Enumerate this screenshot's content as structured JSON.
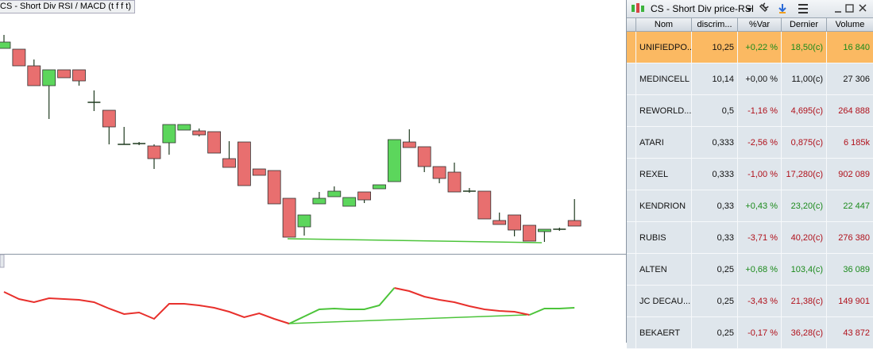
{
  "chart": {
    "title": "CS - Short Div RSI / MACD (t f f t)",
    "candles": [
      {
        "open": 259,
        "high": 276,
        "low": 259,
        "close": 267
      },
      {
        "open": 258,
        "high": 258,
        "low": 237,
        "close": 237
      },
      {
        "open": 237,
        "high": 245,
        "low": 212,
        "close": 212
      },
      {
        "open": 212,
        "high": 232,
        "low": 170,
        "close": 232
      },
      {
        "open": 232,
        "high": 232,
        "low": 222,
        "close": 222
      },
      {
        "open": 232,
        "high": 232,
        "low": 212,
        "close": 218
      },
      {
        "open": 191,
        "high": 206,
        "low": 180,
        "close": 191
      },
      {
        "open": 181,
        "high": 181,
        "low": 138,
        "close": 160
      },
      {
        "open": 138,
        "high": 160,
        "low": 138,
        "close": 138
      },
      {
        "open": 139,
        "high": 141,
        "low": 137,
        "close": 139
      },
      {
        "open": 136,
        "high": 138,
        "low": 107,
        "close": 120
      },
      {
        "open": 140,
        "high": 163,
        "low": 125,
        "close": 163
      },
      {
        "open": 156,
        "high": 163,
        "low": 156,
        "close": 163
      },
      {
        "open": 155,
        "high": 158,
        "low": 148,
        "close": 150
      },
      {
        "open": 154,
        "high": 154,
        "low": 127,
        "close": 127
      },
      {
        "open": 120,
        "high": 142,
        "low": 109,
        "close": 109
      },
      {
        "open": 141,
        "high": 141,
        "low": 86,
        "close": 86
      },
      {
        "open": 107,
        "high": 107,
        "low": 99,
        "close": 99
      },
      {
        "open": 105,
        "high": 105,
        "low": 63,
        "close": 63
      },
      {
        "open": 70,
        "high": 70,
        "low": 21,
        "close": 21
      },
      {
        "open": 34,
        "high": 49,
        "low": 23,
        "close": 49
      },
      {
        "open": 63,
        "high": 78,
        "low": 63,
        "close": 70
      },
      {
        "open": 72,
        "high": 85,
        "low": 72,
        "close": 79
      },
      {
        "open": 60,
        "high": 71,
        "low": 60,
        "close": 71
      },
      {
        "open": 78,
        "high": 78,
        "low": 64,
        "close": 68
      },
      {
        "open": 82,
        "high": 87,
        "low": 82,
        "close": 87
      },
      {
        "open": 91,
        "high": 144,
        "low": 91,
        "close": 144
      },
      {
        "open": 141,
        "high": 157,
        "low": 134,
        "close": 134
      },
      {
        "open": 135,
        "high": 135,
        "low": 103,
        "close": 110
      },
      {
        "open": 110,
        "high": 110,
        "low": 89,
        "close": 95
      },
      {
        "open": 103,
        "high": 115,
        "low": 78,
        "close": 78
      },
      {
        "open": 79,
        "high": 83,
        "low": 77,
        "close": 79
      },
      {
        "open": 79,
        "high": 79,
        "low": 44,
        "close": 44
      },
      {
        "open": 42,
        "high": 52,
        "low": 37,
        "close": 37
      },
      {
        "open": 49,
        "high": 49,
        "low": 22,
        "close": 30
      },
      {
        "open": 36,
        "high": 36,
        "low": 16,
        "close": 16
      },
      {
        "open": 28,
        "high": 31,
        "low": 15,
        "close": 31
      },
      {
        "open": 31,
        "high": 33,
        "low": 29,
        "close": 31
      },
      {
        "open": 42,
        "high": 69,
        "low": 35,
        "close": 35
      }
    ],
    "oscillator": [
      {
        "color": "#e8302c",
        "values": [
          72,
          63,
          59,
          64,
          63,
          62,
          59,
          51,
          44,
          46,
          38,
          57,
          57,
          55,
          52,
          47,
          40,
          45,
          38,
          32,
          null,
          null,
          null,
          null,
          null,
          null,
          77,
          73,
          66,
          62,
          59,
          54,
          50,
          48,
          47,
          43,
          null,
          null,
          null
        ]
      },
      {
        "color": "#4cc43a",
        "values": [
          null,
          null,
          null,
          null,
          null,
          null,
          null,
          null,
          null,
          null,
          null,
          null,
          null,
          null,
          null,
          null,
          null,
          null,
          null,
          32,
          41,
          50,
          51,
          50,
          50,
          55,
          77,
          null,
          null,
          null,
          null,
          null,
          null,
          null,
          null,
          43,
          51,
          51,
          52
        ]
      }
    ]
  },
  "panel": {
    "title": "CS - Short Div price-RSI",
    "columns": [
      "Nom",
      "discrim...",
      "%Var",
      "Dernier",
      "Volume"
    ],
    "rows": [
      [
        "UNIFIEDPO...",
        "10,25",
        "+0,22 %",
        "18,50(c)",
        "16 840"
      ],
      [
        "MEDINCELL",
        "10,14",
        "+0,00 %",
        "11,00(c)",
        "27 306"
      ],
      [
        "REWORLD...",
        "0,5",
        "-1,16 %",
        "4,695(c)",
        "264 888"
      ],
      [
        "ATARI",
        "0,333",
        "-2,56 %",
        "0,875(c)",
        "6 185k"
      ],
      [
        "REXEL",
        "0,333",
        "-1,00 %",
        "17,280(c)",
        "902 089"
      ],
      [
        "KENDRION",
        "0,33",
        "+0,43 %",
        "23,20(c)",
        "22 447"
      ],
      [
        "RUBIS",
        "0,33",
        "-3,71 %",
        "40,20(c)",
        "276 380"
      ],
      [
        "ALTEN",
        "0,25",
        "+0,68 %",
        "103,4(c)",
        "36 089"
      ],
      [
        "JC DECAU...",
        "0,25",
        "-3,43 %",
        "21,38(c)",
        "149 901"
      ],
      [
        "BEKAERT",
        "0,25",
        "-0,17 %",
        "36,28(c)",
        "43 872"
      ]
    ]
  }
}
